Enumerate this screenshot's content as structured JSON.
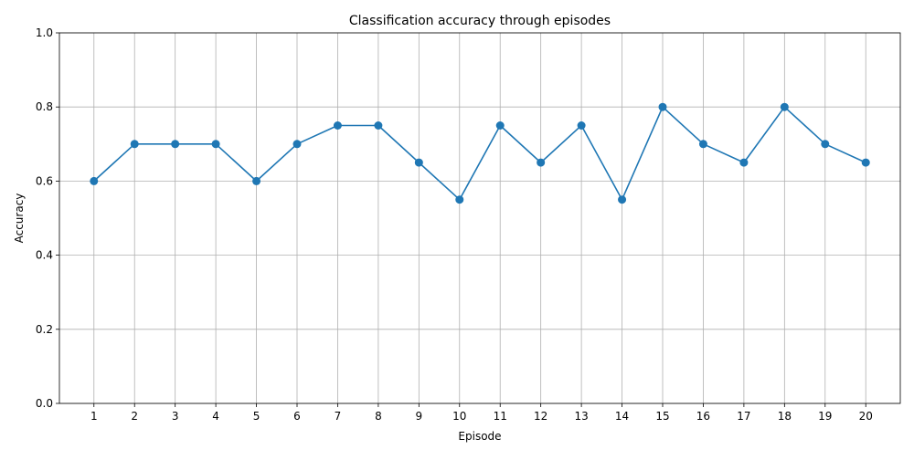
{
  "chart_data": {
    "type": "line",
    "title": "Classification accuracy through episodes",
    "xlabel": "Episode",
    "ylabel": "Accuracy",
    "x": [
      1,
      2,
      3,
      4,
      5,
      6,
      7,
      8,
      9,
      10,
      11,
      12,
      13,
      14,
      15,
      16,
      17,
      18,
      19,
      20
    ],
    "series": [
      {
        "values": [
          0.6,
          0.7,
          0.7,
          0.7,
          0.6,
          0.7,
          0.75,
          0.75,
          0.65,
          0.55,
          0.75,
          0.65,
          0.75,
          0.55,
          0.8,
          0.7,
          0.65,
          0.8,
          0.7,
          0.65
        ],
        "color": "#1f77b4",
        "marker": "circle"
      }
    ],
    "xlim": [
      0.15,
      20.85
    ],
    "ylim": [
      0,
      1.0
    ],
    "xticks": [
      1,
      2,
      3,
      4,
      5,
      6,
      7,
      8,
      9,
      10,
      11,
      12,
      13,
      14,
      15,
      16,
      17,
      18,
      19,
      20
    ],
    "yticks": [
      "0.0",
      "0.2",
      "0.4",
      "0.6",
      "0.8",
      "1.0"
    ],
    "grid": true,
    "grid_color": "#b0b0b0"
  }
}
